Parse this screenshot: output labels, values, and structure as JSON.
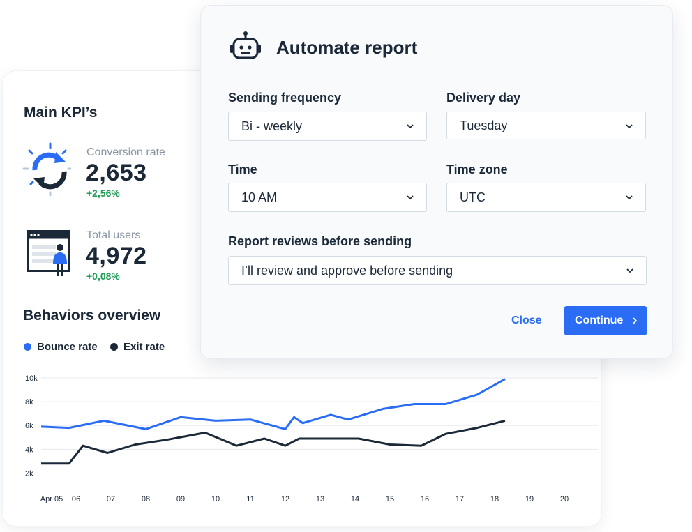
{
  "kpi": {
    "title": "Main KPI’s",
    "items": [
      {
        "label": "Conversion rate",
        "value": "2,653",
        "delta": "+2,56%",
        "icon": "refresh-cycle-icon"
      },
      {
        "label": "Total users",
        "value": "4,972",
        "delta": "+0,08%",
        "icon": "user-window-icon"
      }
    ]
  },
  "behaviors": {
    "title": "Behaviors overview",
    "legend": [
      {
        "label": "Bounce rate",
        "color": "#2a6df4"
      },
      {
        "label": "Exit rate",
        "color": "#1b2838"
      }
    ]
  },
  "modal": {
    "title": "Automate report",
    "icon": "robot-icon",
    "frequency": {
      "label": "Sending frequency",
      "value": "Bi - weekly"
    },
    "delivery_day": {
      "label": "Delivery day",
      "value": "Tuesday"
    },
    "time": {
      "label": "Time",
      "value": "10 AM"
    },
    "timezone": {
      "label": "Time zone",
      "value": "UTC"
    },
    "reviews": {
      "label": "Report reviews before sending",
      "value": "I’ll review and approve before sending"
    },
    "close_label": "Close",
    "continue_label": "Continue"
  },
  "colors": {
    "accent": "#2a6df4",
    "positive": "#1f9d55",
    "text": "#1b2838"
  },
  "chart_data": {
    "type": "line",
    "x": [
      "Apr 05",
      "",
      "06",
      "",
      "07",
      "",
      "08",
      "",
      "09",
      "",
      "10",
      "",
      "11",
      "",
      "12",
      "",
      "13",
      "",
      "14",
      "",
      "15",
      "",
      "16",
      "",
      "17",
      "",
      "18",
      "",
      "19",
      "",
      "20"
    ],
    "tick_labels": [
      "Apr 05",
      "06",
      "07",
      "08",
      "09",
      "10",
      "11",
      "12",
      "13",
      "14",
      "15",
      "16",
      "17",
      "18",
      "19",
      "20"
    ],
    "y_tick_labels": [
      "10k",
      "8k",
      "6k",
      "4k",
      "2k"
    ],
    "ylim": [
      2000,
      10000
    ],
    "series": [
      {
        "name": "Bounce rate",
        "color": "#2a6df4",
        "points": [
          [
            0,
            5900
          ],
          [
            0.8,
            5800
          ],
          [
            1.8,
            6400
          ],
          [
            3,
            5700
          ],
          [
            4,
            6700
          ],
          [
            5,
            6400
          ],
          [
            6,
            6500
          ],
          [
            7,
            5700
          ],
          [
            7.25,
            6700
          ],
          [
            7.5,
            6200
          ],
          [
            8.3,
            6900
          ],
          [
            8.8,
            6500
          ],
          [
            9.8,
            7400
          ],
          [
            10.7,
            7800
          ],
          [
            11.6,
            7800
          ],
          [
            12.5,
            8600
          ],
          [
            13.3,
            9900
          ]
        ]
      },
      {
        "name": "Exit rate",
        "color": "#1b2838",
        "points": [
          [
            0,
            2800
          ],
          [
            0.8,
            2800
          ],
          [
            1.2,
            4300
          ],
          [
            1.9,
            3700
          ],
          [
            2.7,
            4400
          ],
          [
            3.6,
            4800
          ],
          [
            4.7,
            5400
          ],
          [
            5.6,
            4300
          ],
          [
            6.4,
            4900
          ],
          [
            7,
            4300
          ],
          [
            7.4,
            4900
          ],
          [
            8.2,
            4900
          ],
          [
            9.1,
            4900
          ],
          [
            10,
            4400
          ],
          [
            10.9,
            4300
          ],
          [
            11.6,
            5300
          ],
          [
            12.5,
            5800
          ],
          [
            13.3,
            6400
          ]
        ]
      }
    ]
  }
}
